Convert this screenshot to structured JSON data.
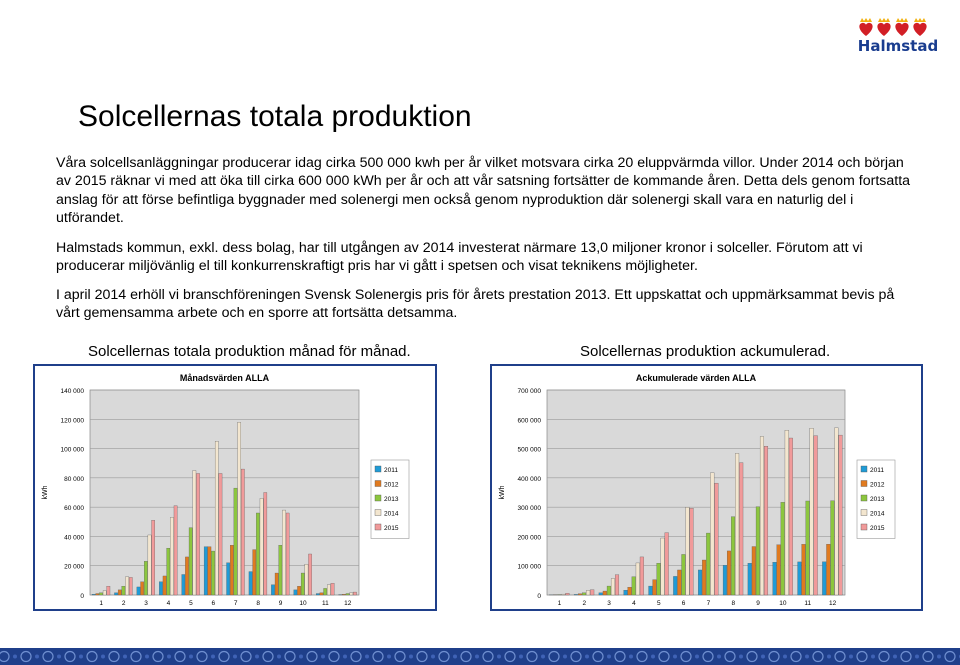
{
  "logo": {
    "text": "Halmstad"
  },
  "title": "Solcellernas totala produktion",
  "paragraphs": [
    "Våra solcellsanläggningar producerar idag cirka 500 000 kwh per år vilket motsvara cirka 20 eluppvärmda villor. Under 2014 och början av 2015 räknar vi med att öka till cirka 600 000 kWh per år och att vår satsning fortsätter de kommande åren. Detta dels genom fortsatta anslag för att förse befintliga byggnader med solenergi men också genom nyproduktion där solenergi skall vara en naturlig del i utförandet.",
    "Halmstads kommun, exkl. dess bolag, har till utgången av 2014 investerat närmare 13,0 miljoner kronor i solceller. Förutom att vi producerar miljövänlig el till konkurrenskraftigt pris har vi gått i spetsen och visat teknikens möjligheter.",
    "I april 2014 erhöll vi branschföreningen Svensk Solenergis pris för årets prestation 2013. Ett uppskattat och uppmärksammat bevis på vårt gemensamma arbete och en sporre att fortsätta detsamma."
  ],
  "captions": {
    "monthly": "Solcellernas totala produktion månad för månad.",
    "cumulative": "Solcellernas produktion ackumulerad."
  },
  "colors": {
    "2011": "#1f9bd6",
    "2012": "#e07a1f",
    "2013": "#8cc63e",
    "2014": "#f3e6cf",
    "2015": "#f19a9a",
    "frame": "#1f3f8a",
    "plot_bg": "#d9d9d9"
  },
  "chart_data": [
    {
      "type": "bar",
      "title": "Månadsvärden ALLA",
      "ylabel": "kWh",
      "xlabel": "",
      "categories": [
        "1",
        "2",
        "3",
        "4",
        "5",
        "6",
        "7",
        "8",
        "9",
        "10",
        "11",
        "12"
      ],
      "ylim": [
        0,
        140000
      ],
      "yticks": [
        "0",
        "20 000",
        "40 000",
        "60 000",
        "80 000",
        "100 000",
        "120 000",
        "140 000"
      ],
      "legend_position": "right",
      "series": [
        {
          "name": "2011",
          "values": [
            500,
            1500,
            5500,
            9000,
            14000,
            33000,
            22000,
            16000,
            7000,
            3500,
            1000,
            300
          ]
        },
        {
          "name": "2012",
          "values": [
            1000,
            3500,
            9000,
            13000,
            26000,
            33000,
            34000,
            31000,
            15000,
            6000,
            1500,
            500
          ]
        },
        {
          "name": "2013",
          "values": [
            1500,
            6000,
            23000,
            32000,
            46000,
            30000,
            73000,
            56000,
            34000,
            15000,
            4500,
            1000
          ]
        },
        {
          "name": "2014",
          "values": [
            3000,
            12500,
            41000,
            53000,
            85000,
            105000,
            118000,
            66000,
            58000,
            21000,
            7000,
            1500
          ]
        },
        {
          "name": "2015",
          "values": [
            6000,
            12000,
            51000,
            61000,
            83000,
            83000,
            86000,
            70000,
            56000,
            28000,
            8000,
            2000
          ]
        }
      ]
    },
    {
      "type": "bar",
      "title": "Ackumulerade värden ALLA",
      "ylabel": "kWh",
      "xlabel": "",
      "categories": [
        "1",
        "2",
        "3",
        "4",
        "5",
        "6",
        "7",
        "8",
        "9",
        "10",
        "11",
        "12"
      ],
      "ylim": [
        0,
        700000
      ],
      "yticks": [
        "0",
        "100 000",
        "200 000",
        "300 000",
        "400 000",
        "500 000",
        "600 000",
        "700 000"
      ],
      "legend_position": "right",
      "series": [
        {
          "name": "2011",
          "values": [
            500,
            2000,
            7500,
            16500,
            30500,
            63500,
            85500,
            101500,
            108500,
            112000,
            113000,
            113300
          ]
        },
        {
          "name": "2012",
          "values": [
            1000,
            4500,
            13500,
            26500,
            52500,
            85500,
            119500,
            150500,
            165500,
            171500,
            173000,
            173500
          ]
        },
        {
          "name": "2013",
          "values": [
            1500,
            7500,
            30500,
            62500,
            108500,
            138500,
            211500,
            267500,
            301500,
            316500,
            321000,
            322000
          ]
        },
        {
          "name": "2014",
          "values": [
            3000,
            15500,
            56500,
            109500,
            194500,
            299500,
            417500,
            483500,
            541500,
            562500,
            569500,
            571000
          ]
        },
        {
          "name": "2015",
          "values": [
            6000,
            18000,
            69000,
            130000,
            213000,
            296000,
            382000,
            452000,
            508000,
            536000,
            544000,
            546000
          ]
        }
      ]
    }
  ]
}
